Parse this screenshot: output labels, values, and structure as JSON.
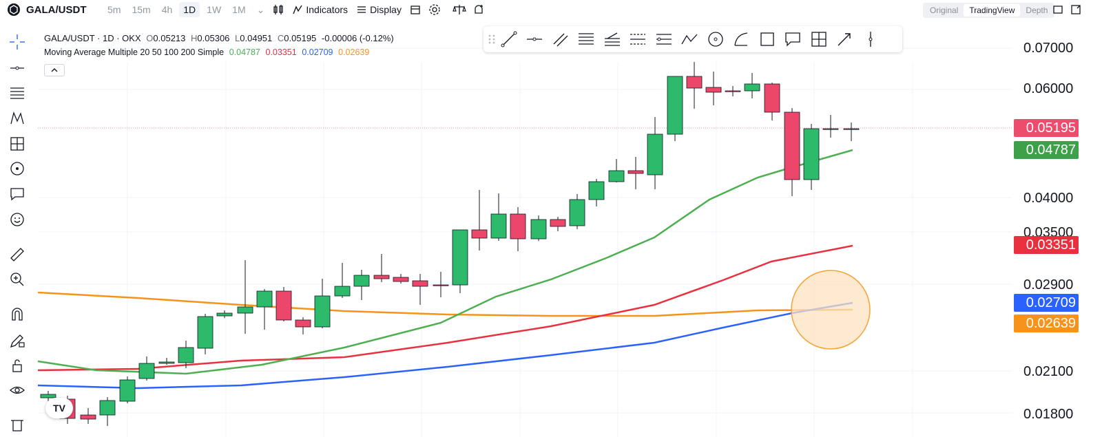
{
  "header": {
    "symbol": "GALA/USDT",
    "timeframes": [
      "5m",
      "15m",
      "4h",
      "1D",
      "1W",
      "1M"
    ],
    "active_timeframe": "1D",
    "indicators_label": "Indicators",
    "display_label": "Display",
    "views": [
      "Original",
      "TradingView",
      "Depth"
    ],
    "active_view": "TradingView"
  },
  "legend": {
    "title": "GALA/USDT · 1D · OKX",
    "o_label": "O",
    "o": "0.05213",
    "h_label": "H",
    "h": "0.05306",
    "l_label": "L",
    "l": "0.04951",
    "c_label": "C",
    "c": "0.05195",
    "change": "-0.00006 (-0.12%)",
    "ma_name": "Moving Average Multiple 20 50 100 200 Simple",
    "ma_values": [
      "0.04787",
      "0.03351",
      "0.02709",
      "0.02639"
    ]
  },
  "price_axis": {
    "labels": [
      "0.07000",
      "0.06000",
      "0.04000",
      "0.03500",
      "0.02900",
      "0.02100",
      "0.01800"
    ],
    "tags": [
      {
        "text": "0.05195",
        "color": "#ef4b6c"
      },
      {
        "text": "0.04787",
        "color": "#3fa04a"
      },
      {
        "text": "0.03351",
        "color": "#e8303f"
      },
      {
        "text": "0.02709",
        "color": "#2962ff"
      },
      {
        "text": "0.02639",
        "color": "#f7931a"
      }
    ]
  },
  "colors": {
    "up": "#2dba6b",
    "down": "#ec466a",
    "ma20": "#4caf50",
    "ma50": "#e8303f",
    "ma100": "#2962ff",
    "ma200": "#f7931a"
  },
  "logo_text": "TV"
}
